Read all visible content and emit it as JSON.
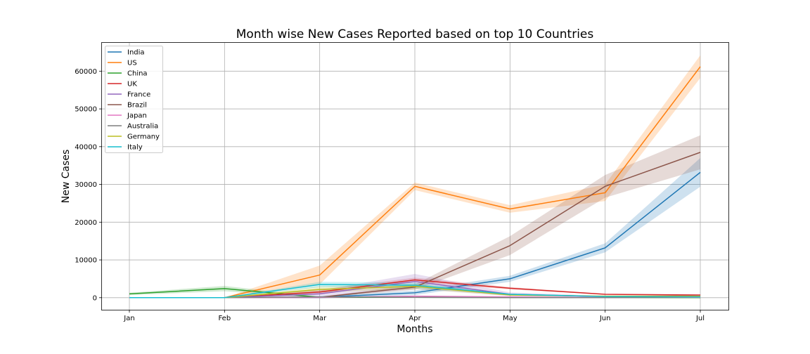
{
  "chart_data": {
    "type": "line",
    "title": "Month wise New Cases Reported based on top 10 Countries",
    "xlabel": "Months",
    "ylabel": "New Cases",
    "categories": [
      "Jan",
      "Feb",
      "Mar",
      "Apr",
      "May",
      "Jun",
      "Jul"
    ],
    "yticks": [
      "0",
      "10000",
      "20000",
      "30000",
      "40000",
      "50000",
      "60000"
    ],
    "ylim": [
      -3200,
      67500
    ],
    "grid": true,
    "legend_position": "top-left",
    "series": [
      {
        "name": "India",
        "color": "#1f77b4",
        "values": [
          0,
          0,
          100,
          1300,
          5000,
          13200,
          33200
        ],
        "band": [
          0,
          0,
          300,
          600,
          800,
          1200,
          3800
        ]
      },
      {
        "name": "US",
        "color": "#ff7f0e",
        "values": [
          0,
          0,
          6000,
          29500,
          23500,
          27800,
          61200
        ],
        "band": [
          0,
          0,
          2500,
          1000,
          1000,
          2200,
          3000
        ]
      },
      {
        "name": "China",
        "color": "#2ca02c",
        "values": [
          1000,
          2400,
          100,
          100,
          50,
          20,
          20
        ],
        "band": [
          300,
          700,
          200,
          100,
          50,
          20,
          20
        ]
      },
      {
        "name": "UK",
        "color": "#d62728",
        "values": [
          0,
          0,
          1500,
          4700,
          2500,
          900,
          700
        ],
        "band": [
          0,
          0,
          600,
          600,
          300,
          100,
          100
        ]
      },
      {
        "name": "France",
        "color": "#9467bd",
        "values": [
          0,
          0,
          1000,
          4300,
          900,
          300,
          500
        ],
        "band": [
          0,
          0,
          900,
          2000,
          500,
          200,
          200
        ]
      },
      {
        "name": "Brazil",
        "color": "#8c564b",
        "values": [
          0,
          0,
          100,
          2800,
          13800,
          29500,
          38500
        ],
        "band": [
          0,
          0,
          100,
          700,
          2500,
          3000,
          4500
        ]
      },
      {
        "name": "Japan",
        "color": "#e377c2",
        "values": [
          0,
          0,
          50,
          400,
          200,
          50,
          100
        ],
        "band": [
          0,
          0,
          50,
          100,
          80,
          30,
          40
        ]
      },
      {
        "name": "Australia",
        "color": "#7f7f7f",
        "values": [
          0,
          0,
          200,
          100,
          20,
          10,
          200
        ],
        "band": [
          0,
          0,
          100,
          50,
          20,
          10,
          100
        ]
      },
      {
        "name": "Germany",
        "color": "#bcbd22",
        "values": [
          0,
          0,
          2200,
          3000,
          700,
          400,
          400
        ],
        "band": [
          0,
          0,
          800,
          700,
          200,
          100,
          100
        ]
      },
      {
        "name": "Italy",
        "color": "#17becf",
        "values": [
          0,
          0,
          3500,
          3300,
          900,
          300,
          200
        ],
        "band": [
          0,
          0,
          700,
          700,
          200,
          100,
          80
        ]
      }
    ]
  }
}
